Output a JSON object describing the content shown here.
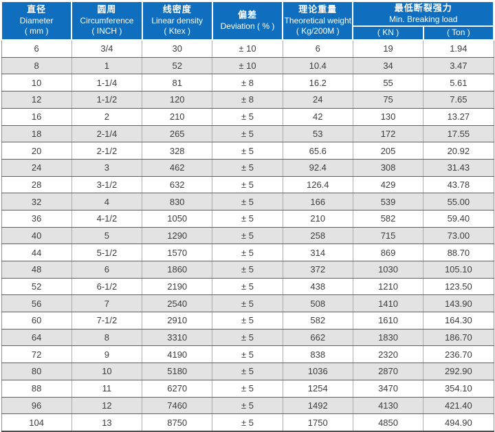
{
  "colors": {
    "header_blue": "#0f6fbe",
    "header_text": "#ffffff",
    "row_alt_gray": "#e3e3e3",
    "grid_dark": "#5f5f5f",
    "grid_light": "#adadad",
    "body_text": "#3c3c3c"
  },
  "table": {
    "header": {
      "columns": [
        {
          "cn": "直径",
          "en": "Diameter",
          "unit": "( mm )"
        },
        {
          "cn": "圆周",
          "en": "Circumference",
          "unit": "( INCH )"
        },
        {
          "cn": "线密度",
          "en": "Linear density",
          "unit": "( Ktex )"
        },
        {
          "cn": "偏差",
          "en": "Deviation ( % )"
        },
        {
          "cn": "理论重量",
          "en": "Theoretical weight",
          "unit": "( Kg/200M )"
        },
        {
          "cn": "最低断裂强力",
          "en": "Min. Breaking load",
          "sub": [
            "( KN )",
            "( Ton )"
          ]
        }
      ]
    },
    "rows": [
      [
        "6",
        "3/4",
        "30",
        "± 10",
        "6",
        "19",
        "1.94"
      ],
      [
        "8",
        "1",
        "52",
        "± 10",
        "10.4",
        "34",
        "3.47"
      ],
      [
        "10",
        "1-1/4",
        "81",
        "± 8",
        "16.2",
        "55",
        "5.61"
      ],
      [
        "12",
        "1-1/2",
        "120",
        "± 8",
        "24",
        "75",
        "7.65"
      ],
      [
        "16",
        "2",
        "210",
        "± 5",
        "42",
        "130",
        "13.27"
      ],
      [
        "18",
        "2-1/4",
        "265",
        "± 5",
        "53",
        "172",
        "17.55"
      ],
      [
        "20",
        "2-1/2",
        "328",
        "± 5",
        "65.6",
        "205",
        "20.92"
      ],
      [
        "24",
        "3",
        "462",
        "± 5",
        "92.4",
        "308",
        "31.43"
      ],
      [
        "28",
        "3-1/2",
        "632",
        "± 5",
        "126.4",
        "429",
        "43.78"
      ],
      [
        "32",
        "4",
        "830",
        "± 5",
        "166",
        "539",
        "55.00"
      ],
      [
        "36",
        "4-1/2",
        "1050",
        "± 5",
        "210",
        "582",
        "59.40"
      ],
      [
        "40",
        "5",
        "1290",
        "± 5",
        "258",
        "715",
        "73.00"
      ],
      [
        "44",
        "5-1/2",
        "1570",
        "± 5",
        "314",
        "869",
        "88.70"
      ],
      [
        "48",
        "6",
        "1860",
        "± 5",
        "372",
        "1030",
        "105.10"
      ],
      [
        "52",
        "6-1/2",
        "2190",
        "± 5",
        "438",
        "1210",
        "123.50"
      ],
      [
        "56",
        "7",
        "2540",
        "± 5",
        "508",
        "1410",
        "143.90"
      ],
      [
        "60",
        "7-1/2",
        "2910",
        "± 5",
        "582",
        "1610",
        "164.30"
      ],
      [
        "64",
        "8",
        "3310",
        "± 5",
        "662",
        "1830",
        "186.70"
      ],
      [
        "72",
        "9",
        "4190",
        "± 5",
        "838",
        "2320",
        "236.70"
      ],
      [
        "80",
        "10",
        "5180",
        "± 5",
        "1036",
        "2870",
        "292.90"
      ],
      [
        "88",
        "11",
        "6270",
        "± 5",
        "1254",
        "3470",
        "354.10"
      ],
      [
        "96",
        "12",
        "7460",
        "± 5",
        "1492",
        "4130",
        "421.40"
      ],
      [
        "104",
        "13",
        "8750",
        "± 5",
        "1750",
        "4850",
        "494.90"
      ]
    ]
  }
}
